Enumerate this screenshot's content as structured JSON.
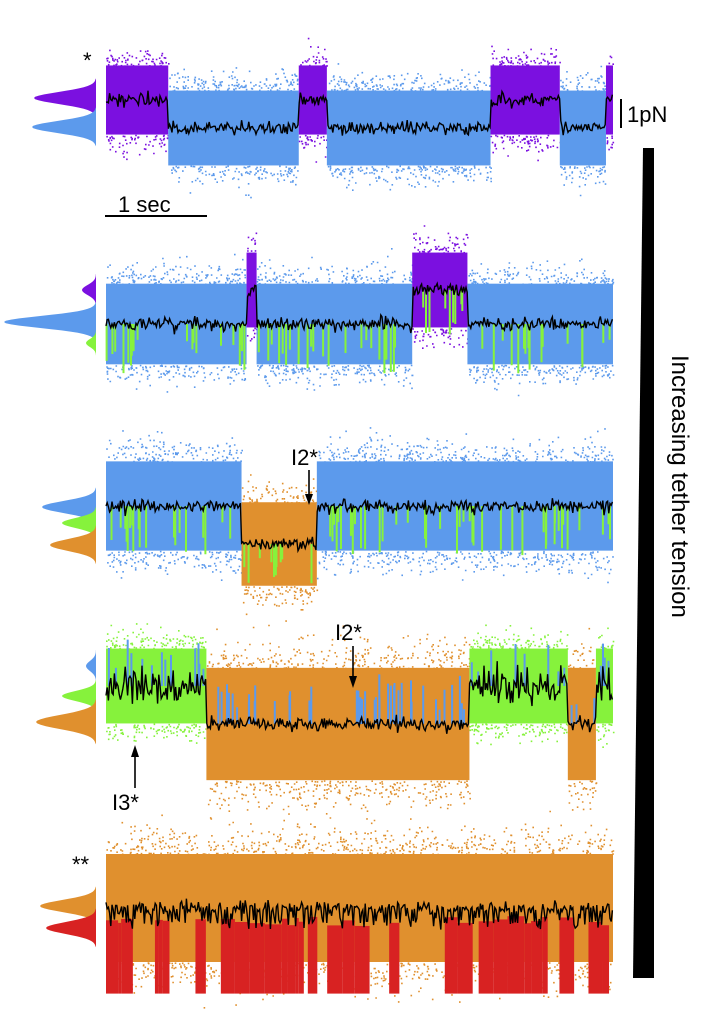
{
  "colors": {
    "purple": "#7B10E0",
    "blue": "#5C9AEC",
    "green": "#86F23C",
    "orange": "#E0902E",
    "red": "#D82222",
    "trace": "#000000"
  },
  "figure": {
    "scale_bar_time": "1 sec",
    "scale_bar_force": "1pN",
    "tension_label": "Increasing tether tension",
    "annotations": {
      "p1_star": "*",
      "p3_i2": "I2*",
      "p4_i2": "I2*",
      "p4_i3": "I3*",
      "p5_star": "**"
    }
  },
  "chart_data": {
    "type": "line",
    "title": "",
    "xlabel": "",
    "ylabel": "",
    "description_units": {
      "time": "sec",
      "force": "pN"
    },
    "panels": [
      {
        "states": [
          "purple",
          "blue"
        ],
        "segments": [
          {
            "state": "purple",
            "t_start": 0.0,
            "t_end": 0.62
          },
          {
            "state": "blue",
            "t_start": 0.62,
            "t_end": 1.92
          },
          {
            "state": "purple",
            "t_start": 1.92,
            "t_end": 2.2
          },
          {
            "state": "blue",
            "t_start": 2.2,
            "t_end": 3.83
          },
          {
            "state": "purple",
            "t_start": 3.83,
            "t_end": 4.52
          },
          {
            "state": "blue",
            "t_start": 4.52,
            "t_end": 4.98
          },
          {
            "state": "purple",
            "t_start": 4.98,
            "t_end": 5.05
          }
        ]
      },
      {
        "states": [
          "purple",
          "blue",
          "green"
        ],
        "segments": [
          {
            "state": "blue",
            "t_start": 0.0,
            "t_end": 1.4
          },
          {
            "state": "purple",
            "t_start": 1.4,
            "t_end": 1.5
          },
          {
            "state": "blue",
            "t_start": 1.5,
            "t_end": 3.05
          },
          {
            "state": "purple",
            "t_start": 3.05,
            "t_end": 3.6
          },
          {
            "state": "blue",
            "t_start": 3.6,
            "t_end": 5.05
          }
        ]
      },
      {
        "states": [
          "blue",
          "green",
          "orange"
        ],
        "segments": [
          {
            "state": "blue",
            "t_start": 0.0,
            "t_end": 1.35
          },
          {
            "state": "orange",
            "t_start": 1.35,
            "t_end": 2.1
          },
          {
            "state": "blue",
            "t_start": 2.1,
            "t_end": 5.05
          }
        ]
      },
      {
        "states": [
          "blue",
          "green",
          "orange"
        ],
        "segments": [
          {
            "state": "green",
            "t_start": 0.0,
            "t_end": 1.0
          },
          {
            "state": "orange",
            "t_start": 1.0,
            "t_end": 3.62
          },
          {
            "state": "green",
            "t_start": 3.62,
            "t_end": 4.6
          },
          {
            "state": "orange",
            "t_start": 4.6,
            "t_end": 4.88
          },
          {
            "state": "green",
            "t_start": 4.88,
            "t_end": 5.05
          }
        ]
      },
      {
        "states": [
          "orange",
          "red"
        ],
        "segments": [
          {
            "state": "orange",
            "t_start": 0.0,
            "t_end": 5.05
          }
        ]
      }
    ]
  }
}
